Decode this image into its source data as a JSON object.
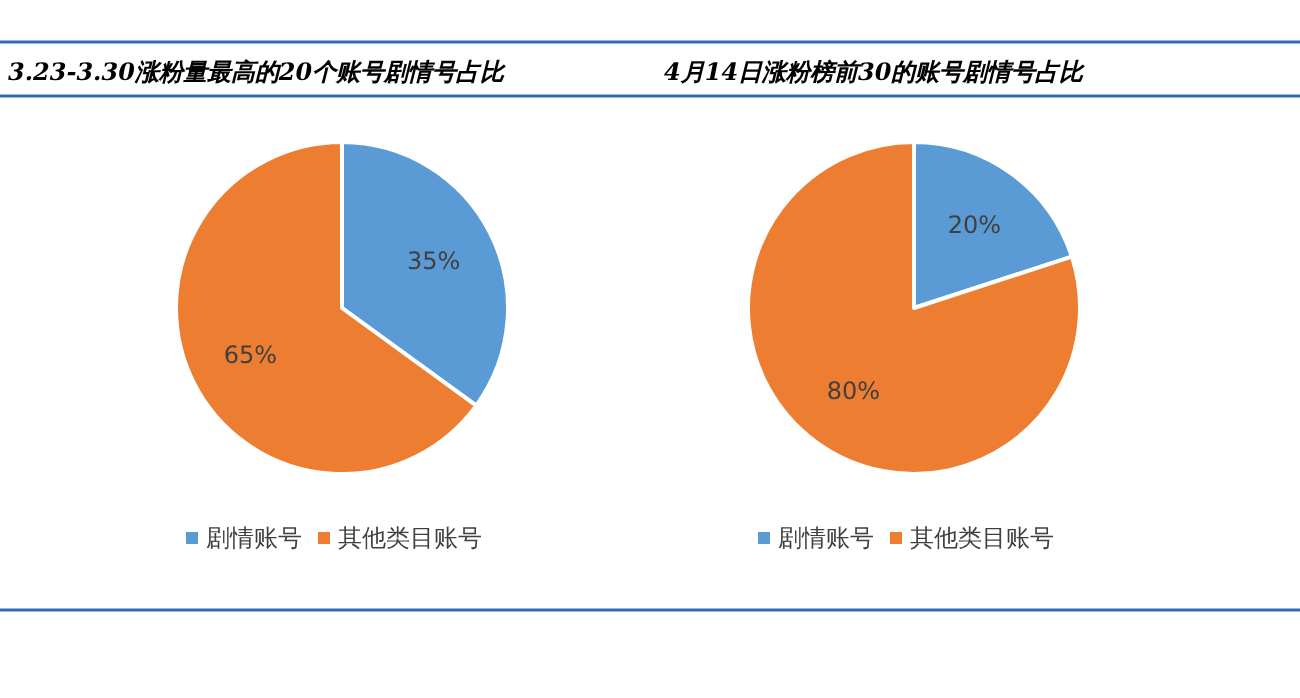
{
  "chart_data": [
    {
      "type": "pie",
      "title": "3.23-3.30涨粉量最高的20个账号剧情号占比",
      "categories": [
        "剧情账号",
        "其他类目账号"
      ],
      "values": [
        35,
        65
      ],
      "colors": [
        "#5b9bd5",
        "#ed7d31"
      ],
      "value_labels": [
        "35%",
        "65%"
      ],
      "legend": "bottom"
    },
    {
      "type": "pie",
      "title": "4月14日涨粉榜前30的账号剧情号占比",
      "categories": [
        "剧情账号",
        "其他类目账号"
      ],
      "values": [
        20,
        80
      ],
      "colors": [
        "#5b9bd5",
        "#ed7d31"
      ],
      "value_labels": [
        "20%",
        "80%"
      ],
      "legend": "bottom"
    }
  ]
}
